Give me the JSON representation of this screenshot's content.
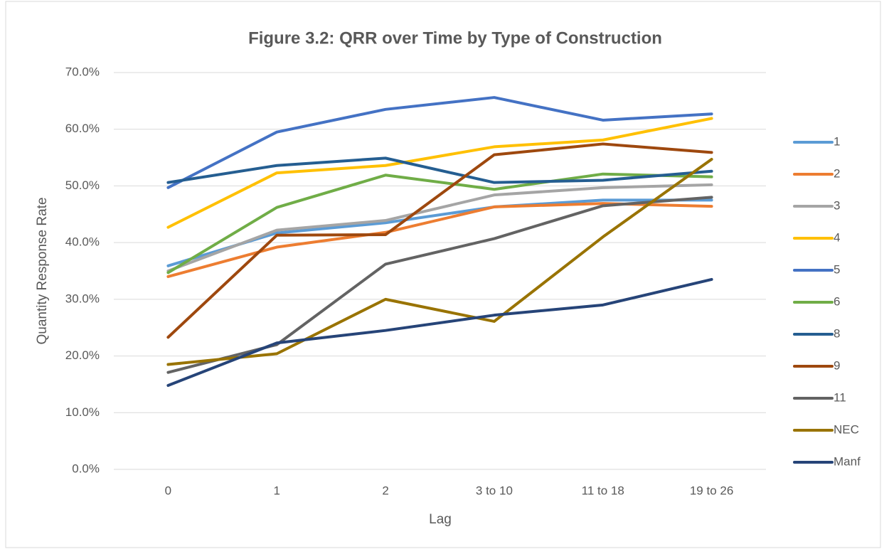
{
  "chart_data": {
    "type": "line",
    "title": "Figure 3.2: QRR over Time by Type of Construction",
    "x_label": "Lag",
    "y_label": "Quantity Response Rate",
    "categories": [
      "0",
      "1",
      "2",
      "3 to 10",
      "11 to 18",
      "19 to 26"
    ],
    "ylim": [
      0,
      70
    ],
    "yticks": [
      {
        "value": 0,
        "label": "0.0%"
      },
      {
        "value": 10,
        "label": "10.0%"
      },
      {
        "value": 20,
        "label": "20.0%"
      },
      {
        "value": 30,
        "label": "30.0%"
      },
      {
        "value": 40,
        "label": "40.0%"
      },
      {
        "value": 50,
        "label": "50.0%"
      },
      {
        "value": 60,
        "label": "60.0%"
      },
      {
        "value": 70,
        "label": "70.0%"
      }
    ],
    "grid": true,
    "legend": "right",
    "series": [
      {
        "name": "1",
        "color": "#5B9BD5",
        "values": [
          35.9,
          41.7,
          43.5,
          46.3,
          47.5,
          47.5
        ]
      },
      {
        "name": "2",
        "color": "#ED7D31",
        "values": [
          34.0,
          39.2,
          41.8,
          46.3,
          46.9,
          46.4
        ]
      },
      {
        "name": "3",
        "color": "#A5A5A5",
        "values": [
          35.0,
          42.2,
          43.9,
          48.4,
          49.7,
          50.2
        ]
      },
      {
        "name": "4",
        "color": "#FFC000",
        "values": [
          42.7,
          52.3,
          53.6,
          56.9,
          58.1,
          61.9
        ]
      },
      {
        "name": "5",
        "color": "#4472C4",
        "values": [
          49.7,
          59.5,
          63.5,
          65.6,
          61.6,
          62.7
        ]
      },
      {
        "name": "6",
        "color": "#70AD47",
        "values": [
          34.7,
          46.2,
          51.9,
          49.4,
          52.1,
          51.6
        ]
      },
      {
        "name": "8",
        "color": "#255E91",
        "values": [
          50.6,
          53.6,
          54.9,
          50.6,
          51.0,
          52.6
        ]
      },
      {
        "name": "9",
        "color": "#9E480E",
        "values": [
          23.3,
          41.3,
          41.4,
          55.5,
          57.4,
          55.9
        ]
      },
      {
        "name": "11",
        "color": "#636363",
        "values": [
          17.1,
          22.0,
          36.2,
          40.7,
          46.5,
          48.0
        ]
      },
      {
        "name": "NEC",
        "color": "#997300",
        "values": [
          18.5,
          20.4,
          30.0,
          26.1,
          41.0,
          54.7
        ]
      },
      {
        "name": "Manf",
        "color": "#264478",
        "values": [
          14.8,
          22.3,
          24.5,
          27.2,
          29.0,
          33.5
        ]
      }
    ]
  }
}
